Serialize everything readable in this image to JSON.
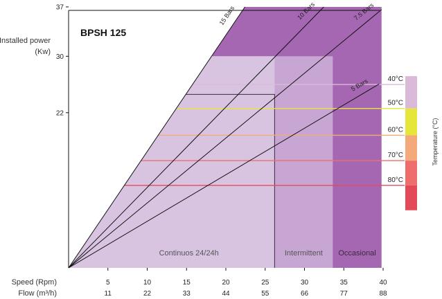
{
  "chart_data": {
    "type": "area",
    "title": "BPSH 125",
    "ylabel": "Installed power",
    "ylabel_unit": "(Kw)",
    "xlabel_speed": "Speed (Rpm)",
    "xlabel_flow": "Flow (m³/h)",
    "right_axis_label": "Temperature (°C)",
    "x_speed_ticks": [
      "5",
      "10",
      "15",
      "20",
      "25",
      "30",
      "35",
      "40"
    ],
    "x_flow_ticks": [
      "11",
      "22",
      "33",
      "44",
      "55",
      "66",
      "77",
      "88"
    ],
    "y_ticks": [
      "22",
      "30",
      "37"
    ],
    "x_range_speed": [
      0,
      40
    ],
    "y_range": [
      0,
      37
    ],
    "regions": [
      {
        "label": "Continuos 24/24h",
        "speed_range": [
          0,
          26.2
        ],
        "color": "#d8c4e0"
      },
      {
        "label": "Intermittent",
        "speed_range": [
          26.2,
          33.6
        ],
        "color": "#c7a6d3"
      },
      {
        "label": "Occasional",
        "speed_range": [
          33.6,
          39.8
        ],
        "color": "#a567b1"
      }
    ],
    "pressure_lines": [
      {
        "label": "15 Bars",
        "power_at_speed_10": 16.5
      },
      {
        "label": "10 Bars",
        "power_at_speed_10": 11.4
      },
      {
        "label": "7.5 Bars",
        "power_at_speed_10": 9.2
      },
      {
        "label": "5 Bars",
        "power_at_speed_10": 6.6
      }
    ],
    "power_limit_lines": [
      {
        "power": 30,
        "speed_max": 33.6
      },
      {
        "power": 24.6,
        "speed_max": 26.2
      }
    ],
    "temperatures": [
      {
        "label": "40°C",
        "power": 26.0,
        "color": "#dbb9d9"
      },
      {
        "label": "50°C",
        "power": 22.6,
        "color": "#e6e63a"
      },
      {
        "label": "60°C",
        "power": 18.8,
        "color": "#f4a97a"
      },
      {
        "label": "70°C",
        "power": 15.2,
        "color": "#ef6d6d"
      },
      {
        "label": "80°C",
        "power": 11.7,
        "color": "#e34a58"
      }
    ]
  }
}
